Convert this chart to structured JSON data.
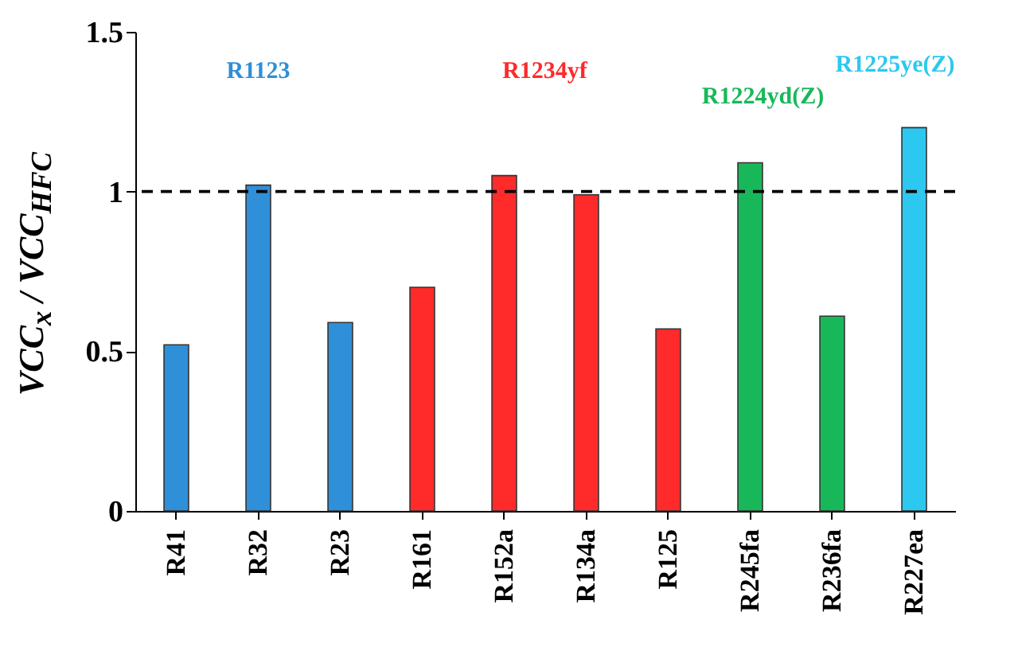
{
  "chart_data": {
    "type": "bar",
    "ylabel": "VCC$_{x}$ / VCC$_{HFC}$",
    "categories": [
      "R41",
      "R32",
      "R23",
      "R161",
      "R152a",
      "R134a",
      "R125",
      "R245fa",
      "R236fa",
      "R227ea"
    ],
    "values": [
      0.52,
      1.02,
      0.59,
      0.7,
      1.05,
      0.99,
      0.57,
      1.09,
      0.61,
      1.2
    ],
    "colors": [
      "#2f8fd8",
      "#2f8fd8",
      "#2f8fd8",
      "#ff2a2a",
      "#ff2a2a",
      "#ff2a2a",
      "#ff2a2a",
      "#18b85a",
      "#18b85a",
      "#2cc8f0"
    ],
    "ylim": [
      0,
      1.5
    ],
    "yticks": [
      0,
      0.5,
      1,
      1.5
    ],
    "grid": false,
    "ref_lines": [
      {
        "axis": "y",
        "value": 1,
        "color": "#000000",
        "line_style": "dashed"
      }
    ],
    "annotations": [
      "R1123",
      "R1234yf",
      "R1224yd(Z)",
      "R1225ye(Z)"
    ]
  }
}
